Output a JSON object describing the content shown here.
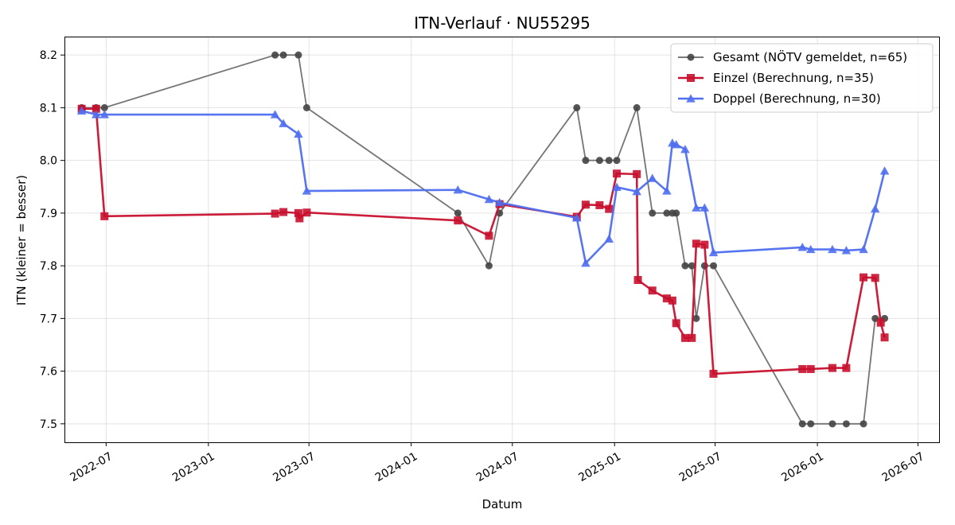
{
  "chart_data": {
    "type": "line",
    "title": "ITN-Verlauf · NU55295",
    "xlabel": "Datum",
    "ylabel": "ITN  (kleiner = besser)",
    "xlim": [
      "2022-04-17",
      "2026-08-08"
    ],
    "ylim": [
      7.465,
      8.235
    ],
    "x_ticks": [
      "2022-07",
      "2023-01",
      "2023-07",
      "2024-01",
      "2024-07",
      "2025-01",
      "2025-07",
      "2026-01",
      "2026-07"
    ],
    "y_ticks": [
      7.5,
      7.6,
      7.7,
      7.8,
      7.9,
      8.0,
      8.1,
      8.2
    ],
    "grid": true,
    "legend_position": "top-right",
    "series": [
      {
        "name": "Gesamt (NÖTV gemeldet, n=65)",
        "color": "#666666",
        "marker": "circle",
        "points": [
          [
            "2022-05-18",
            8.1
          ],
          [
            "2022-06-13",
            8.1
          ],
          [
            "2022-06-28",
            8.1
          ],
          [
            "2023-05-01",
            8.2
          ],
          [
            "2023-05-16",
            8.2
          ],
          [
            "2023-06-12",
            8.2
          ],
          [
            "2023-06-27",
            8.1
          ],
          [
            "2024-03-25",
            7.9
          ],
          [
            "2024-05-20",
            7.8
          ],
          [
            "2024-06-08",
            7.9
          ],
          [
            "2024-10-25",
            8.1
          ],
          [
            "2024-11-10",
            8.0
          ],
          [
            "2024-12-05",
            8.0
          ],
          [
            "2024-12-22",
            8.0
          ],
          [
            "2025-01-05",
            8.0
          ],
          [
            "2025-02-10",
            8.1
          ],
          [
            "2025-03-10",
            7.9
          ],
          [
            "2025-04-05",
            7.9
          ],
          [
            "2025-04-15",
            7.9
          ],
          [
            "2025-04-22",
            7.9
          ],
          [
            "2025-05-08",
            7.8
          ],
          [
            "2025-05-20",
            7.8
          ],
          [
            "2025-05-28",
            7.7
          ],
          [
            "2025-06-12",
            7.8
          ],
          [
            "2025-06-28",
            7.8
          ],
          [
            "2025-12-05",
            7.5
          ],
          [
            "2025-12-20",
            7.5
          ],
          [
            "2026-01-28",
            7.5
          ],
          [
            "2026-02-22",
            7.5
          ],
          [
            "2026-03-25",
            7.5
          ],
          [
            "2026-04-15",
            7.7
          ],
          [
            "2026-05-02",
            7.7
          ]
        ]
      },
      {
        "name": "Einzel (Berechnung, n=35)",
        "color": "#c8102e",
        "marker": "square",
        "points": [
          [
            "2022-05-18",
            8.098
          ],
          [
            "2022-06-13",
            8.098
          ],
          [
            "2022-06-28",
            7.894
          ],
          [
            "2023-05-01",
            7.899
          ],
          [
            "2023-05-16",
            7.902
          ],
          [
            "2023-06-12",
            7.9
          ],
          [
            "2023-06-14",
            7.89
          ],
          [
            "2023-06-27",
            7.901
          ],
          [
            "2024-03-25",
            7.886
          ],
          [
            "2024-05-20",
            7.857
          ],
          [
            "2024-06-08",
            7.917
          ],
          [
            "2024-10-25",
            7.893
          ],
          [
            "2024-11-10",
            7.916
          ],
          [
            "2024-12-05",
            7.915
          ],
          [
            "2024-12-22",
            7.908
          ],
          [
            "2025-01-05",
            7.975
          ],
          [
            "2025-02-10",
            7.974
          ],
          [
            "2025-02-12",
            7.773
          ],
          [
            "2025-03-10",
            7.753
          ],
          [
            "2025-04-05",
            7.738
          ],
          [
            "2025-04-15",
            7.734
          ],
          [
            "2025-04-22",
            7.691
          ],
          [
            "2025-05-08",
            7.663
          ],
          [
            "2025-05-20",
            7.663
          ],
          [
            "2025-05-28",
            7.842
          ],
          [
            "2025-06-12",
            7.84
          ],
          [
            "2025-06-28",
            7.595
          ],
          [
            "2025-12-05",
            7.604
          ],
          [
            "2025-12-20",
            7.604
          ],
          [
            "2026-01-28",
            7.606
          ],
          [
            "2026-02-22",
            7.606
          ],
          [
            "2026-03-25",
            7.778
          ],
          [
            "2026-04-15",
            7.777
          ],
          [
            "2026-04-25",
            7.692
          ],
          [
            "2026-05-02",
            7.664
          ]
        ]
      },
      {
        "name": "Doppel (Berechnung, n=30)",
        "color": "#4f6ef0",
        "marker": "triangle",
        "points": [
          [
            "2022-05-18",
            8.094
          ],
          [
            "2022-06-13",
            8.087
          ],
          [
            "2022-06-28",
            8.087
          ],
          [
            "2023-05-01",
            8.087
          ],
          [
            "2023-05-16",
            8.07
          ],
          [
            "2023-06-12",
            8.05
          ],
          [
            "2023-06-27",
            7.942
          ],
          [
            "2024-03-25",
            7.944
          ],
          [
            "2024-05-20",
            7.926
          ],
          [
            "2024-06-08",
            7.92
          ],
          [
            "2024-10-25",
            7.891
          ],
          [
            "2024-11-10",
            7.805
          ],
          [
            "2024-12-22",
            7.851
          ],
          [
            "2025-01-05",
            7.949
          ],
          [
            "2025-02-10",
            7.941
          ],
          [
            "2025-03-10",
            7.966
          ],
          [
            "2025-04-05",
            7.942
          ],
          [
            "2025-04-15",
            8.033
          ],
          [
            "2025-04-22",
            8.03
          ],
          [
            "2025-05-08",
            8.021
          ],
          [
            "2025-05-28",
            7.91
          ],
          [
            "2025-06-12",
            7.91
          ],
          [
            "2025-06-28",
            7.825
          ],
          [
            "2025-12-05",
            7.835
          ],
          [
            "2025-12-20",
            7.831
          ],
          [
            "2026-01-28",
            7.831
          ],
          [
            "2026-02-22",
            7.829
          ],
          [
            "2026-03-25",
            7.831
          ],
          [
            "2026-04-15",
            7.908
          ],
          [
            "2026-05-02",
            7.98
          ]
        ]
      }
    ]
  }
}
